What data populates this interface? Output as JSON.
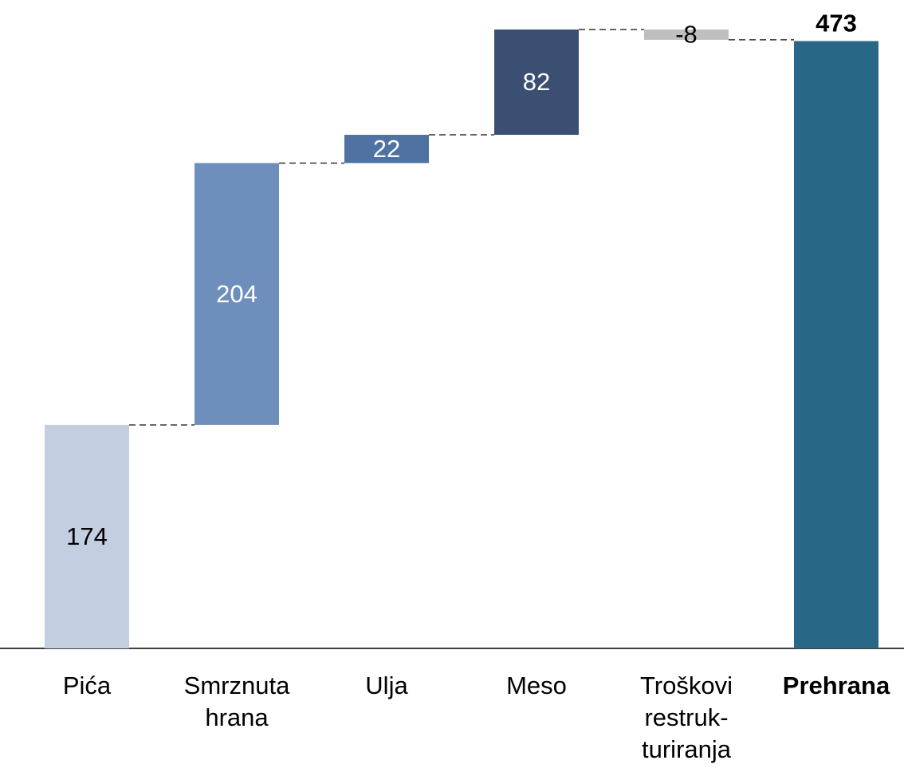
{
  "chart_data": {
    "type": "waterfall",
    "categories": [
      [
        "Pića"
      ],
      [
        "Smrznuta",
        "hrana"
      ],
      [
        "Ulja"
      ],
      [
        "Meso"
      ],
      [
        "Troškovi",
        "restruk-",
        "turiranja"
      ],
      [
        "Prehrana"
      ]
    ],
    "values": [
      174,
      204,
      22,
      82,
      -8,
      473
    ],
    "colors": [
      "#c3cfe0",
      "#6e8fbb",
      "#4f72a3",
      "#3a4f72",
      "#bfbfbf",
      "#286785"
    ],
    "label_colors": [
      "#000000",
      "#ffffff",
      "#ffffff",
      "#ffffff",
      "#000000",
      "#000000"
    ],
    "total": [
      false,
      false,
      false,
      false,
      false,
      true
    ],
    "ylim": [
      0,
      505
    ]
  }
}
